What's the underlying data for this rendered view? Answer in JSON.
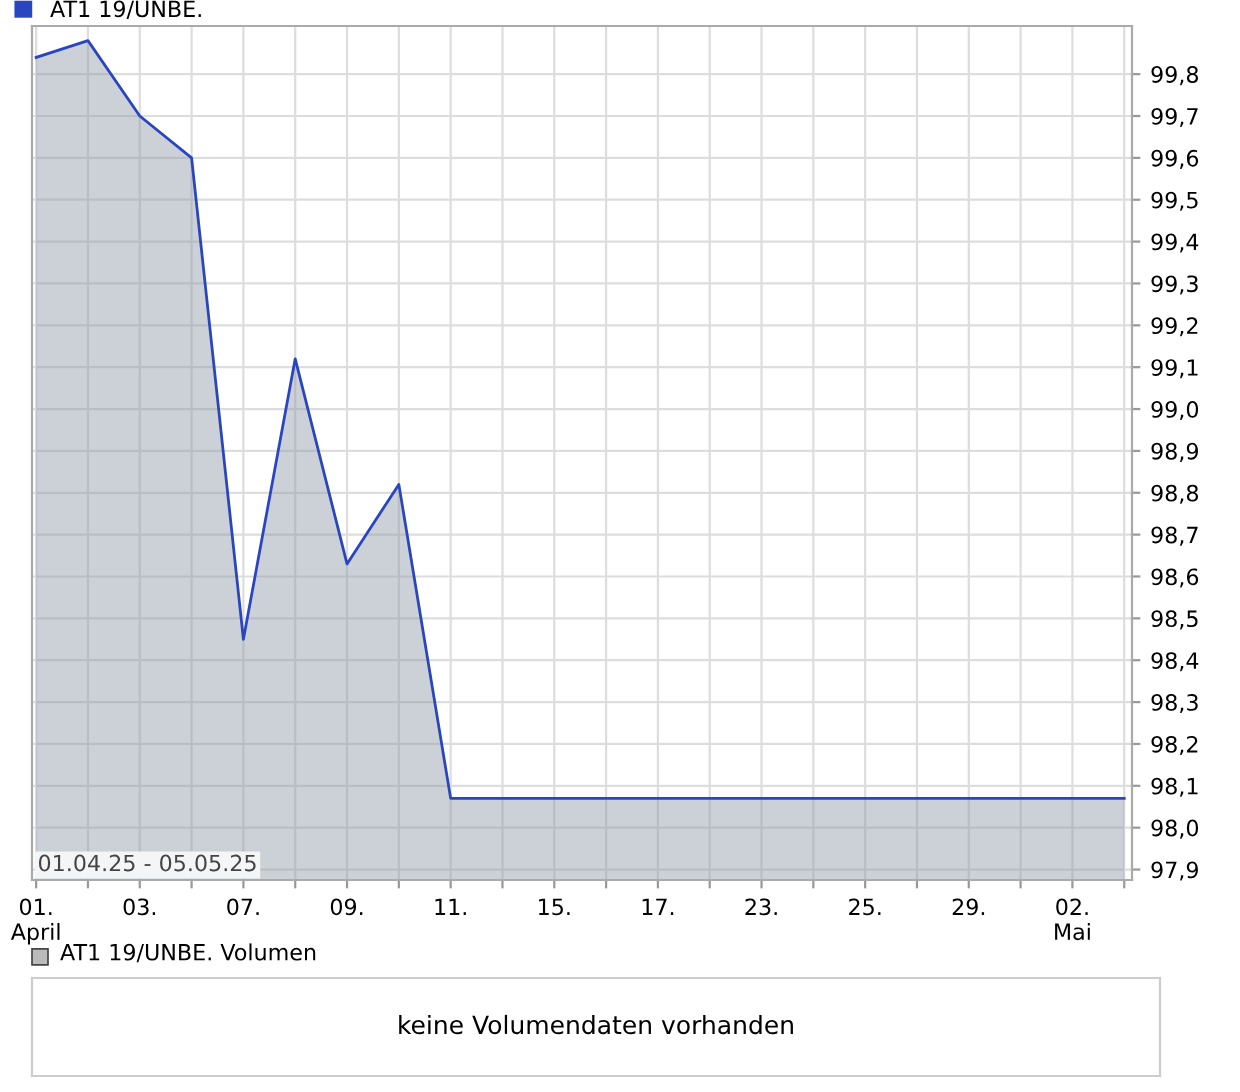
{
  "chart_data": [
    {
      "type": "area",
      "legend": "top left",
      "grid": true,
      "marker": "none",
      "line_style": "solid",
      "categories": [
        "01.\nApril",
        null,
        "03.",
        null,
        "07.",
        null,
        "09.",
        null,
        "11.",
        null,
        "15.",
        null,
        "17.",
        null,
        "23.",
        null,
        "25.",
        null,
        "29.",
        null,
        "02.\nMai",
        null
      ],
      "series": [
        {
          "name": "AT1 19/UNBE.",
          "color": "#2a45c0",
          "values": [
            99.84,
            99.88,
            99.7,
            99.6,
            98.45,
            99.12,
            98.63,
            98.82,
            98.07,
            98.07,
            98.07,
            98.07,
            98.07,
            98.07,
            98.07,
            98.07,
            98.07,
            98.07,
            98.07,
            98.07,
            98.07,
            98.07
          ]
        }
      ],
      "ylim": [
        97.875,
        99.915
      ],
      "yticks": [
        {
          "value": 97.9,
          "label": "97,9"
        },
        {
          "value": 98.0,
          "label": "98,0"
        },
        {
          "value": 98.1,
          "label": "98,1"
        },
        {
          "value": 98.2,
          "label": "98,2"
        },
        {
          "value": 98.3,
          "label": "98,3"
        },
        {
          "value": 98.4,
          "label": "98,4"
        },
        {
          "value": 98.5,
          "label": "98,5"
        },
        {
          "value": 98.6,
          "label": "98,6"
        },
        {
          "value": 98.7,
          "label": "98,7"
        },
        {
          "value": 98.8,
          "label": "98,8"
        },
        {
          "value": 98.9,
          "label": "98,9"
        },
        {
          "value": 99.0,
          "label": "99,0"
        },
        {
          "value": 99.1,
          "label": "99,1"
        },
        {
          "value": 99.2,
          "label": "99,2"
        },
        {
          "value": 99.3,
          "label": "99,3"
        },
        {
          "value": 99.4,
          "label": "99,4"
        },
        {
          "value": 99.5,
          "label": "99,5"
        },
        {
          "value": 99.6,
          "label": "99,6"
        },
        {
          "value": 99.7,
          "label": "99,7"
        },
        {
          "value": 99.8,
          "label": "99,8"
        }
      ],
      "annotations": [
        "01.04.25 - 05.05.25"
      ]
    },
    {
      "type": "other",
      "title": "AT1 19/UNBE. Volumen",
      "annotations": [
        "keine Volumendaten vorhanden"
      ]
    }
  ]
}
